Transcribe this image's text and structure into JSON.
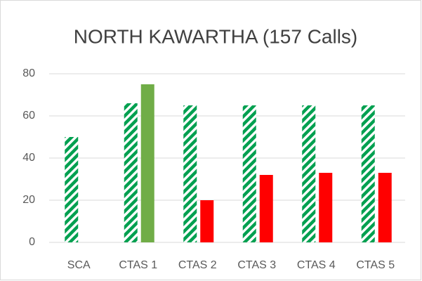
{
  "chart_data": {
    "type": "bar",
    "title": "NORTH KAWARTHA (157 Calls)",
    "categories": [
      "SCA",
      "CTAS 1",
      "CTAS 2",
      "CTAS 3",
      "CTAS 4",
      "CTAS 5"
    ],
    "series": [
      {
        "color": "#00a050",
        "pattern": "diagonal-stripes",
        "values": [
          50,
          66,
          65,
          65,
          65,
          65
        ]
      },
      {
        "colors": [
          null,
          "#70ad47",
          "#ff0000",
          "#ff0000",
          "#ff0000",
          "#ff0000"
        ],
        "values": [
          null,
          75,
          20,
          32,
          33,
          33
        ]
      }
    ],
    "ylim": [
      0,
      80
    ],
    "yticks": [
      0,
      20,
      40,
      60,
      80
    ],
    "grid": true
  }
}
